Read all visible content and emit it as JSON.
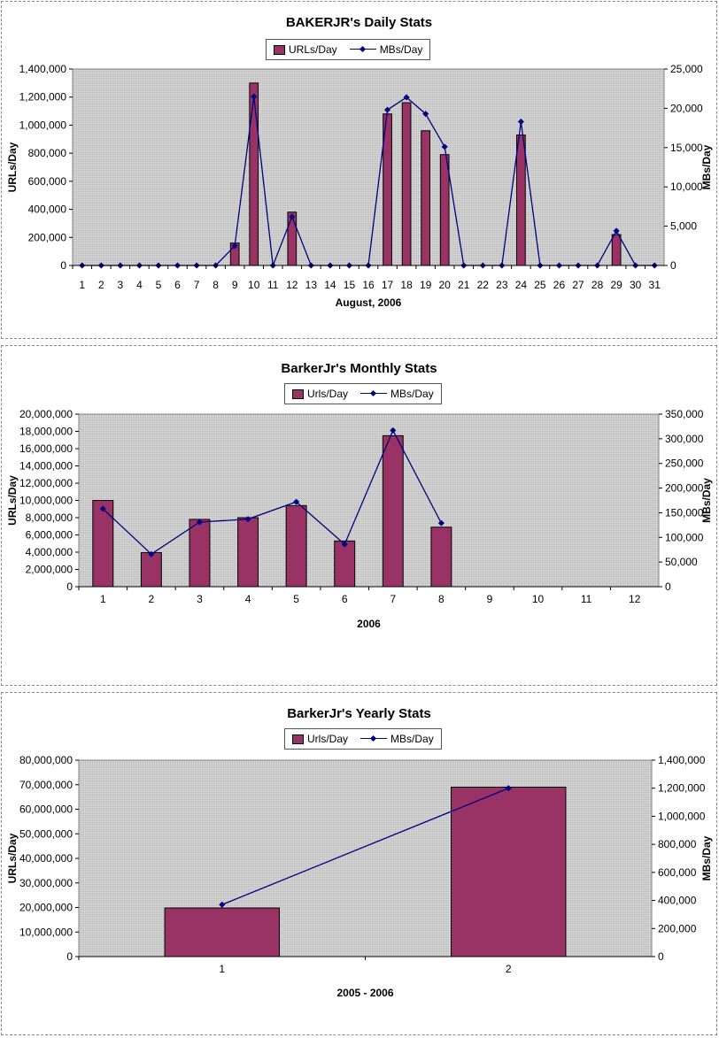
{
  "chart_data": [
    {
      "type": "bar",
      "title": "BAKERJR's Daily Stats",
      "xlabel": "August, 2006",
      "ylabel": "URLs/Day",
      "y2label": "MBs/Day",
      "legend_position": "top-center",
      "grid": false,
      "categories": [
        "1",
        "2",
        "3",
        "4",
        "5",
        "6",
        "7",
        "8",
        "9",
        "10",
        "11",
        "12",
        "13",
        "14",
        "15",
        "16",
        "17",
        "18",
        "19",
        "20",
        "21",
        "22",
        "23",
        "24",
        "25",
        "26",
        "27",
        "28",
        "29",
        "30",
        "31"
      ],
      "ylim": [
        0,
        1400000
      ],
      "y_ticks": [
        "0",
        "200,000",
        "400,000",
        "600,000",
        "800,000",
        "1,000,000",
        "1,200,000",
        "1,400,000"
      ],
      "y2lim": [
        0,
        25000
      ],
      "y2_ticks": [
        "0",
        "5,000",
        "10,000",
        "15,000",
        "20,000",
        "25,000"
      ],
      "series": [
        {
          "name": "URLs/Day",
          "kind": "bar",
          "axis": "left",
          "color": "#993366",
          "values": [
            0,
            0,
            0,
            0,
            0,
            0,
            0,
            0,
            160000,
            1300000,
            0,
            380000,
            0,
            0,
            0,
            0,
            1080000,
            1160000,
            960000,
            790000,
            0,
            0,
            0,
            930000,
            0,
            0,
            0,
            0,
            220000,
            0,
            0
          ]
        },
        {
          "name": "MBs/Day",
          "kind": "line",
          "axis": "right",
          "color": "#000080",
          "values": [
            0,
            0,
            0,
            0,
            0,
            0,
            0,
            0,
            2500,
            21500,
            0,
            6200,
            0,
            0,
            0,
            0,
            19800,
            21400,
            19300,
            15100,
            0,
            0,
            0,
            18300,
            0,
            0,
            0,
            0,
            4400,
            0,
            0
          ]
        }
      ]
    },
    {
      "type": "bar",
      "title": "BarkerJr's Monthly Stats",
      "xlabel": "2006",
      "ylabel": "URLs/Day",
      "y2label": "MBs/Day",
      "legend_position": "top-center",
      "grid": false,
      "categories": [
        "1",
        "2",
        "3",
        "4",
        "5",
        "6",
        "7",
        "8",
        "9",
        "10",
        "11",
        "12"
      ],
      "ylim": [
        0,
        20000000
      ],
      "y_ticks": [
        "0",
        "2,000,000",
        "4,000,000",
        "6,000,000",
        "8,000,000",
        "10,000,000",
        "12,000,000",
        "14,000,000",
        "16,000,000",
        "18,000,000",
        "20,000,000"
      ],
      "y2lim": [
        0,
        350000
      ],
      "y2_ticks": [
        "0",
        "50,000",
        "100,000",
        "150,000",
        "200,000",
        "250,000",
        "300,000",
        "350,000"
      ],
      "series": [
        {
          "name": "Urls/Day",
          "kind": "bar",
          "axis": "left",
          "color": "#993366",
          "values": [
            10000000,
            3950000,
            7800000,
            8000000,
            9400000,
            5300000,
            17500000,
            6900000,
            null,
            null,
            null,
            null
          ]
        },
        {
          "name": "MBs/Day",
          "kind": "line",
          "axis": "right",
          "color": "#000080",
          "values": [
            158000,
            66000,
            131000,
            137000,
            172000,
            86000,
            317000,
            129000,
            null,
            null,
            null,
            null
          ]
        }
      ]
    },
    {
      "type": "bar",
      "title": "BarkerJr's Yearly Stats",
      "xlabel": "2005 - 2006",
      "ylabel": "URLs/Day",
      "y2label": "MBs/Day",
      "legend_position": "top-center",
      "grid": false,
      "categories": [
        "1",
        "2"
      ],
      "ylim": [
        0,
        80000000
      ],
      "y_ticks": [
        "0",
        "10,000,000",
        "20,000,000",
        "30,000,000",
        "40,000,000",
        "50,000,000",
        "60,000,000",
        "70,000,000",
        "80,000,000"
      ],
      "y2lim": [
        0,
        1400000
      ],
      "y2_ticks": [
        "0",
        "200,000",
        "400,000",
        "600,000",
        "800,000",
        "1,000,000",
        "1,200,000",
        "1,400,000"
      ],
      "series": [
        {
          "name": "Urls/Day",
          "kind": "bar",
          "axis": "left",
          "color": "#993366",
          "values": [
            19800000,
            69000000
          ]
        },
        {
          "name": "MBs/Day",
          "kind": "line",
          "axis": "right",
          "color": "#000080",
          "values": [
            370000,
            1200000
          ]
        }
      ]
    }
  ]
}
